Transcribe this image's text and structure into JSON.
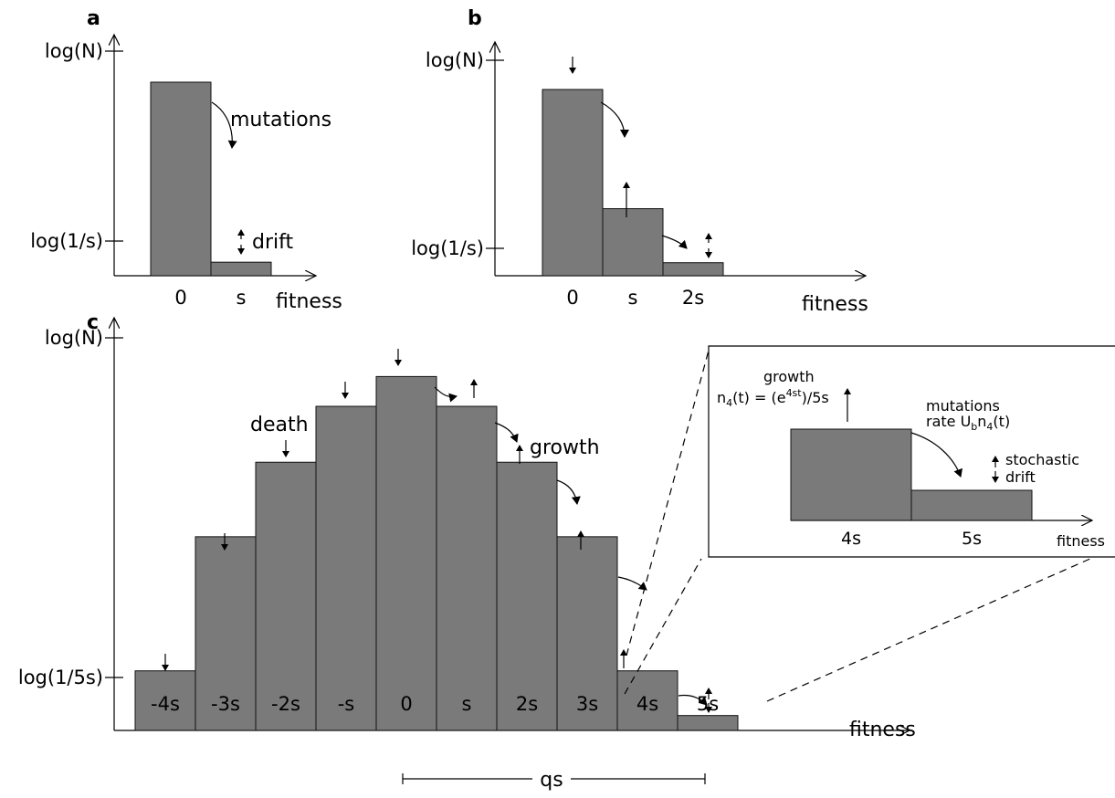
{
  "panels": {
    "a": {
      "label": "a",
      "y_top": "log(N)",
      "y_bottom": "log(1/s)",
      "x_ticks": [
        "0",
        "s"
      ],
      "x_title": "fitness",
      "mutations": "mutations",
      "drift": "drift"
    },
    "b": {
      "label": "b",
      "y_top": "log(N)",
      "y_bottom": "log(1/s)",
      "x_ticks": [
        "0",
        "s",
        "2s"
      ],
      "x_title": "fitness"
    },
    "c": {
      "label": "c",
      "y_top": "log(N)",
      "y_bottom": "log(1/5s)",
      "x_ticks": [
        "-4s",
        "-3s",
        "-2s",
        "-s",
        "0",
        "s",
        "2s",
        "3s",
        "4s",
        "5s"
      ],
      "x_title": "fitness",
      "death": "death",
      "growth": "growth",
      "range_label": "qs"
    },
    "inset": {
      "growth": "growth",
      "formula": "n4(t) = (e4st)/5s",
      "mutations": "mutations",
      "rate": "rate Ubn4(t)",
      "stochastic": "stochastic",
      "drift": "drift",
      "x_ticks": [
        "4s",
        "5s"
      ],
      "x_title": "fitness"
    }
  },
  "chart_data": [
    {
      "type": "bar",
      "categories": [
        "0",
        "s"
      ],
      "values": [
        1.0,
        0.07
      ],
      "xlabel": "fitness",
      "ylabel": ""
    },
    {
      "type": "bar",
      "categories": [
        "0",
        "s",
        "2s"
      ],
      "values": [
        1.0,
        0.36,
        0.07
      ],
      "xlabel": "fitness",
      "ylabel": ""
    },
    {
      "type": "bar",
      "categories": [
        "-4s",
        "-3s",
        "-2s",
        "-s",
        "0",
        "s",
        "2s",
        "3s",
        "4s",
        "5s"
      ],
      "values": [
        0.16,
        0.52,
        0.72,
        0.87,
        0.95,
        0.87,
        0.72,
        0.52,
        0.16,
        0.04
      ],
      "xlabel": "fitness",
      "ylabel": ""
    },
    {
      "type": "bar",
      "categories": [
        "4s",
        "5s"
      ],
      "values": [
        1.0,
        0.33
      ],
      "xlabel": "fitness",
      "ylabel": ""
    }
  ]
}
